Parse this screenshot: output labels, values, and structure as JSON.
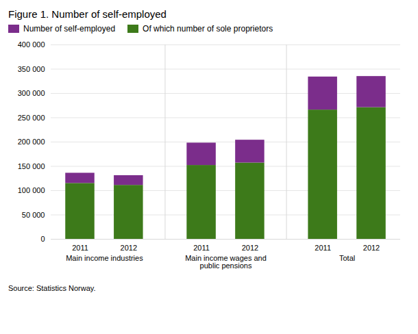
{
  "chart_data": {
    "type": "bar",
    "stacked": true,
    "title": "Figure 1. Number of self-employed",
    "subtitle": "Source: Statistics Norway.",
    "categories": [
      "2011",
      "2012",
      "2011",
      "2012",
      "2011",
      "2012"
    ],
    "group_labels": [
      "Main income industries",
      "Main income wages and\npublic pensions",
      "Total"
    ],
    "series": [
      {
        "name": "Of which number of sole proprietors",
        "color": "#3d7a1a",
        "values": [
          115000,
          111000,
          152000,
          157000,
          266000,
          271000
        ]
      },
      {
        "name": "Number of self-employed",
        "color": "#7b2d8b",
        "values": [
          21000,
          20000,
          46000,
          47000,
          68000,
          64000
        ]
      }
    ],
    "ylim": [
      0,
      400000
    ],
    "yticks": [
      0,
      {
        "value": 50000,
        "label": "50 000"
      },
      {
        "value": 100000,
        "label": "100 000"
      },
      {
        "value": 150000,
        "label": "150 000"
      },
      {
        "value": 200000,
        "label": "200 000"
      },
      {
        "value": 250000,
        "label": "250 000"
      },
      {
        "value": 300000,
        "label": "300 000"
      },
      {
        "value": 350000,
        "label": "350 000"
      },
      {
        "value": 400000,
        "label": "400 000"
      }
    ],
    "grid": true,
    "legend": "upper left"
  }
}
